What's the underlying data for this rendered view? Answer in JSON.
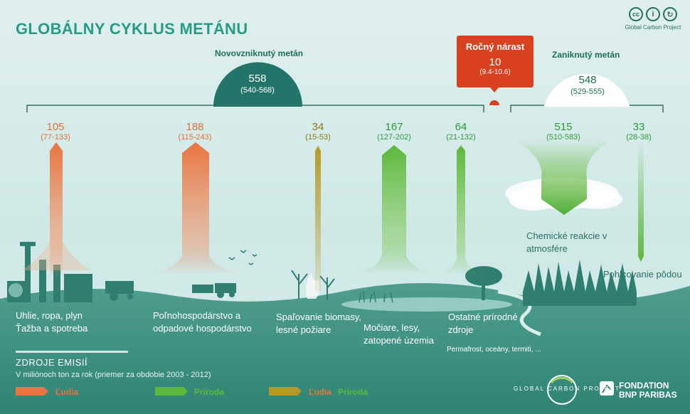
{
  "title": "GLOBÁLNY CYKLUS METÁNU",
  "logo": {
    "label": "Global Carbon Project",
    "icons": [
      "cc-icon",
      "by-icon",
      "sa-icon"
    ]
  },
  "new_methane": {
    "label": "Novovzniknutý metán",
    "value": "558",
    "range": "(540-568)"
  },
  "annual_increase": {
    "label": "Ročný nárast",
    "value": "10",
    "range": "(9.4-10.6)"
  },
  "lost_methane": {
    "label": "Zaniknutý metán",
    "value": "548",
    "range": "(529-555)"
  },
  "sources": [
    {
      "value": "105",
      "range": "(77-133)",
      "type": "human",
      "caption1": "Uhlie, ropa, plyn",
      "caption2": "Ťažba a spotreba"
    },
    {
      "value": "188",
      "range": "(115-243)",
      "type": "human",
      "caption1": "Poľnohospodárstvo a",
      "caption2": "odpadové hospodárstvo"
    },
    {
      "value": "34",
      "range": "(15-53)",
      "type": "both",
      "caption1": "Spaľovanie biomasy,",
      "caption2": "lesné požiare"
    },
    {
      "value": "167",
      "range": "(127-202)",
      "type": "nature",
      "caption1": "Močiare, lesy,",
      "caption2": "zatopené územia"
    },
    {
      "value": "64",
      "range": "(21-132)",
      "type": "nature",
      "caption1": "Ostatné prírodné",
      "caption2": "zdroje",
      "note": "Permafrost, oceány, termiti, ..."
    }
  ],
  "sinks": [
    {
      "value": "515",
      "range": "(510-583)",
      "caption1": "Chemické reakcie v",
      "caption2": "atmosfére"
    },
    {
      "value": "33",
      "range": "(28-38)",
      "caption1": "Pohlcovanie pôdou"
    }
  ],
  "legend": {
    "title": "ZDROJE EMISIÍ",
    "subtitle": "V miliónoch ton za rok (priemer za obdobie 2003 - 2012)",
    "human": "Ľudia",
    "nature": "Príroda",
    "both_human": "Ľudia",
    "both_nature": "Príroda"
  },
  "footer_logos": {
    "gcp": "GLOBAL CARBON PROJECT",
    "bnp1": "FONDATION",
    "bnp2": "BNP PARIBAS"
  },
  "colors": {
    "human": "#e8743e",
    "nature": "#5cb83a",
    "both": "#b59a22",
    "teal": "#23756a",
    "red": "#d9421e",
    "title": "#2a9b83"
  }
}
